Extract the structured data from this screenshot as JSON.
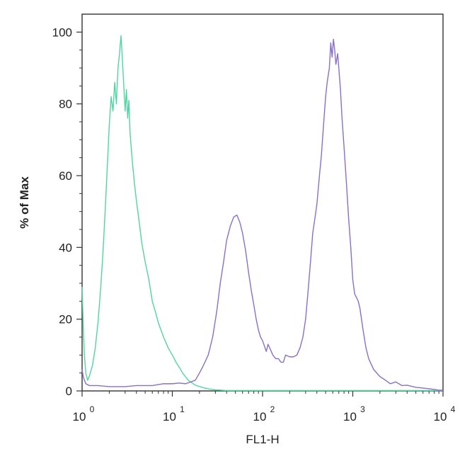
{
  "chart_data": {
    "type": "line",
    "title": "",
    "xlabel": "FL1-H",
    "ylabel": "% of Max",
    "xscale": "log",
    "xlim": [
      1,
      10000
    ],
    "ylim": [
      0,
      105
    ],
    "grid": false,
    "legend": "none",
    "x_ticks": [
      {
        "value": 1,
        "base": "10",
        "exp": "0"
      },
      {
        "value": 10,
        "base": "10",
        "exp": "1"
      },
      {
        "value": 100,
        "base": "10",
        "exp": "2"
      },
      {
        "value": 1000,
        "base": "10",
        "exp": "3"
      },
      {
        "value": 10000,
        "base": "10",
        "exp": "4"
      }
    ],
    "y_ticks": [
      {
        "value": 0,
        "label": "0"
      },
      {
        "value": 20,
        "label": "20"
      },
      {
        "value": 40,
        "label": "40"
      },
      {
        "value": 60,
        "label": "60"
      },
      {
        "value": 80,
        "label": "80"
      },
      {
        "value": 100,
        "label": "100"
      }
    ],
    "series": [
      {
        "color": "#4fd6a0",
        "x": [
          1.0,
          1.03,
          1.06,
          1.1,
          1.15,
          1.2,
          1.3,
          1.4,
          1.5,
          1.6,
          1.7,
          1.8,
          1.9,
          2.0,
          2.1,
          2.2,
          2.3,
          2.4,
          2.5,
          2.6,
          2.7,
          2.8,
          2.9,
          3.0,
          3.1,
          3.2,
          3.3,
          3.4,
          3.5,
          3.6,
          3.7,
          3.8,
          4.0,
          4.3,
          4.6,
          5.0,
          5.5,
          6.0,
          6.5,
          7.0,
          8.0,
          9.0,
          10,
          11,
          12,
          13,
          15,
          18,
          22,
          26,
          30,
          35,
          40,
          50,
          70,
          100,
          200,
          500,
          1000,
          3000,
          10000
        ],
        "y": [
          29,
          18,
          10,
          5,
          3,
          4,
          7,
          12,
          19,
          28,
          38,
          50,
          62,
          74,
          82,
          78,
          86,
          80,
          90,
          94,
          99,
          92,
          85,
          78,
          84,
          76,
          81,
          72,
          68,
          64,
          61,
          58,
          53,
          47,
          41,
          36,
          31,
          25,
          22,
          19,
          15,
          12,
          10,
          8,
          6.5,
          5,
          3,
          1.6,
          0.9,
          0.5,
          0.3,
          0.2,
          0.1,
          0.1,
          0.1,
          0.1,
          0.1,
          0.1,
          0.1,
          0.1,
          0.1
        ]
      },
      {
        "color": "#8a6fc7",
        "x": [
          1.0,
          1.03,
          1.06,
          1.1,
          1.2,
          1.5,
          2.0,
          3.0,
          4.0,
          6.0,
          8.0,
          10,
          12,
          14,
          16,
          18,
          20,
          22,
          25,
          28,
          31,
          34,
          37,
          40,
          44,
          48,
          52,
          56,
          60,
          65,
          70,
          75,
          80,
          85,
          90,
          95,
          100,
          110,
          115,
          120,
          130,
          140,
          150,
          160,
          170,
          180,
          200,
          220,
          240,
          260,
          280,
          300,
          320,
          340,
          360,
          380,
          400,
          420,
          450,
          480,
          500,
          520,
          550,
          570,
          590,
          610,
          630,
          650,
          680,
          700,
          730,
          760,
          800,
          850,
          900,
          950,
          1000,
          1050,
          1100,
          1150,
          1200,
          1300,
          1400,
          1500,
          1700,
          2000,
          2300,
          2600,
          3000,
          3500,
          4000,
          5000,
          6000,
          7000,
          8000,
          9000,
          10000
        ],
        "y": [
          6,
          4,
          3,
          2,
          1.5,
          1.5,
          1.2,
          1.2,
          1.5,
          1.5,
          2,
          2,
          2.2,
          2,
          2.5,
          3,
          5,
          7,
          10,
          15,
          22,
          30,
          36,
          42,
          46,
          48.5,
          49,
          47,
          44,
          39,
          33,
          28,
          24,
          20,
          17,
          15,
          14,
          11,
          13,
          12,
          10,
          9,
          9,
          8,
          8,
          10,
          9.5,
          9.5,
          10,
          12,
          15,
          20,
          28,
          36,
          44,
          48,
          52,
          58,
          66,
          76,
          82,
          86,
          90,
          97,
          93,
          98,
          95,
          91,
          94,
          90,
          84,
          76,
          68,
          58,
          48,
          40,
          31,
          27,
          26,
          25,
          23,
          17,
          12,
          9,
          6,
          4,
          3,
          2,
          2.5,
          1.5,
          1.6,
          1,
          0.8,
          0.6,
          0.4,
          0.2,
          0.2
        ]
      }
    ]
  }
}
